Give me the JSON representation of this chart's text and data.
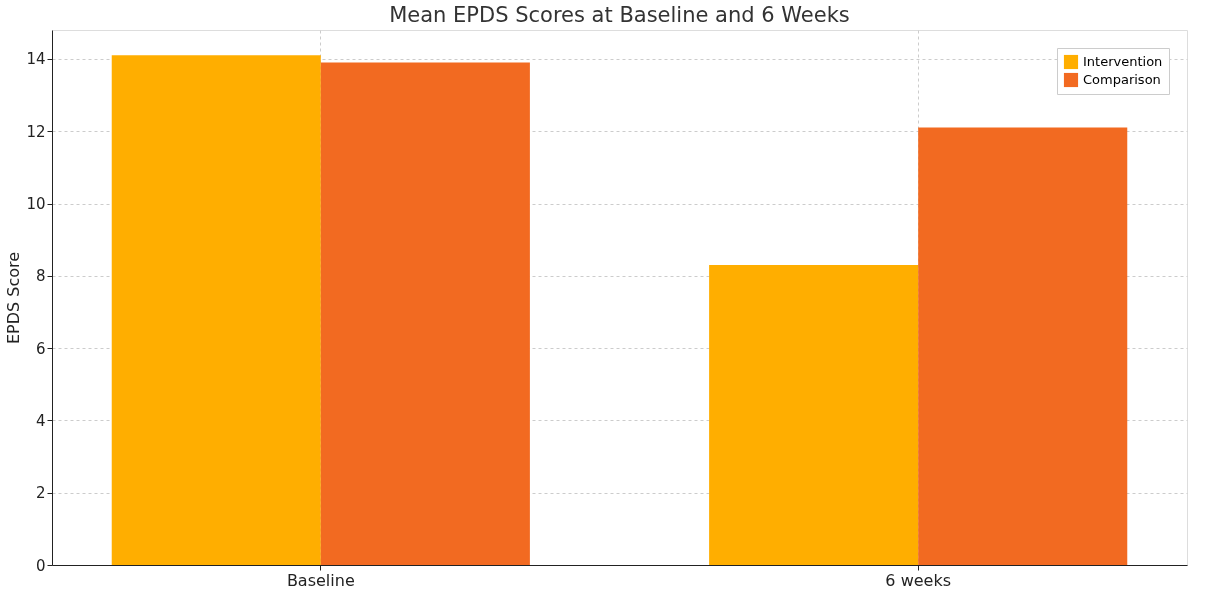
{
  "chart_data": {
    "type": "bar",
    "title": "Mean EPDS Scores at Baseline and 6 Weeks",
    "ylabel": "EPDS Score",
    "categories": [
      "Baseline",
      "6 weeks"
    ],
    "series": [
      {
        "name": "Intervention",
        "color": "#ffae00",
        "values": [
          14.1,
          8.3
        ]
      },
      {
        "name": "Comparison",
        "color": "#f26a21",
        "values": [
          13.9,
          12.1
        ]
      }
    ],
    "ylim": [
      0,
      14.8
    ],
    "yticks": [
      0,
      2,
      4,
      6,
      8,
      10,
      12,
      14
    ],
    "grid": true,
    "legend": "top right"
  }
}
